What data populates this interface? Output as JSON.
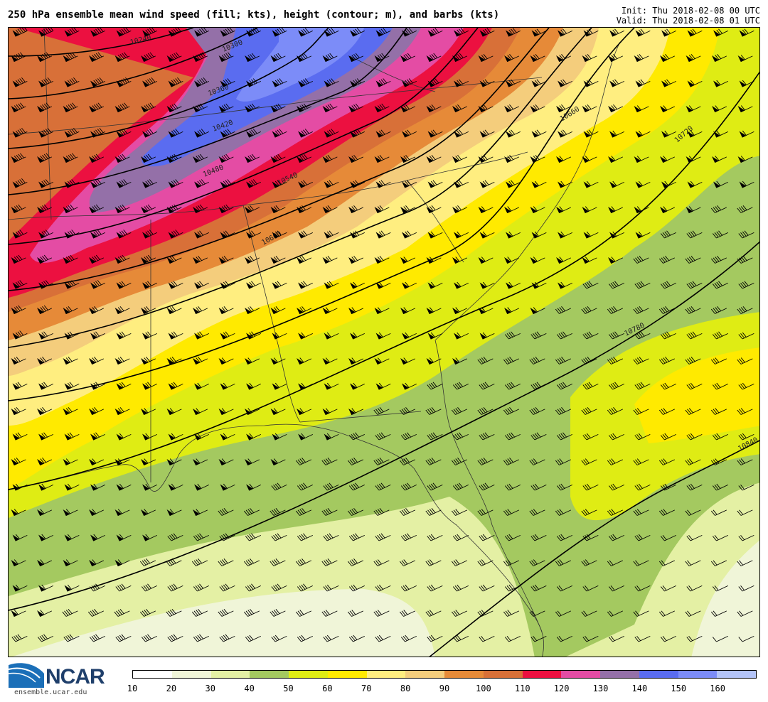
{
  "header": {
    "title": "250 hPa ensemble mean wind speed (fill; kts), height (contour; m), and barbs (kts)",
    "init": "Init: Thu 2018-02-08 00 UTC",
    "valid": "Valid: Thu 2018-02-08 01 UTC"
  },
  "branding": {
    "logo_text": "NCAR",
    "url": "ensemble.ucar.edu"
  },
  "colorbar": {
    "colors": [
      "#ffffff",
      "#f0f5d8",
      "#e4f0a4",
      "#a4c960",
      "#dfec14",
      "#ffea00",
      "#ffee80",
      "#f4cd7c",
      "#e68a38",
      "#d87038",
      "#ec1040",
      "#e44ca4",
      "#9470a8",
      "#5a6cf0",
      "#7c8cf8",
      "#b4c4f8"
    ],
    "ticks": [
      "10",
      "20",
      "30",
      "40",
      "50",
      "60",
      "70",
      "80",
      "90",
      "100",
      "110",
      "120",
      "130",
      "140",
      "150",
      "160"
    ]
  },
  "contours": {
    "labels": [
      "10240",
      "10300",
      "10360",
      "10420",
      "10480",
      "10540",
      "10600",
      "10660",
      "10720",
      "10780",
      "10840"
    ]
  },
  "map": {
    "region": "Southeastern United States"
  }
}
